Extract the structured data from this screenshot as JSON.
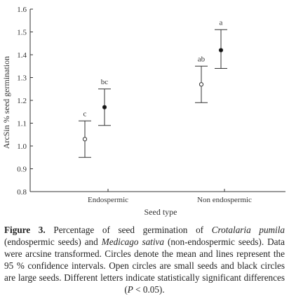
{
  "chart_data": {
    "type": "scatter",
    "xlabel": "Seed type",
    "ylabel": "ArcSin % seed germination",
    "ylim": [
      0.8,
      1.6
    ],
    "yticks": [
      "0.8",
      "0.9",
      "1.0",
      "1.1",
      "1.2",
      "1.3",
      "1.4",
      "1.5",
      "1.6"
    ],
    "categories": [
      "Endospermic",
      "Non endospermic"
    ],
    "grid": false,
    "points": [
      {
        "category": "Endospermic",
        "size": "small",
        "fill": "open",
        "mean": 1.03,
        "lower": 0.95,
        "upper": 1.11,
        "letter": "c"
      },
      {
        "category": "Endospermic",
        "size": "large",
        "fill": "filled",
        "mean": 1.17,
        "lower": 1.09,
        "upper": 1.25,
        "letter": "bc"
      },
      {
        "category": "Non endospermic",
        "size": "small",
        "fill": "open",
        "mean": 1.27,
        "lower": 1.19,
        "upper": 1.35,
        "letter": "ab"
      },
      {
        "category": "Non endospermic",
        "size": "large",
        "fill": "filled",
        "mean": 1.42,
        "lower": 1.34,
        "upper": 1.51,
        "letter": "a"
      }
    ]
  },
  "caption": {
    "label": "Figure 3.",
    "t1": " Percentage of seed germination of ",
    "sp1": "Crotalaria pumila",
    "t2": " (endospermic seeds) and ",
    "sp2": "Medicago sativa",
    "t3": " (non-endospermic seeds). Data were arcsine transformed. Circles denote the mean and lines represent the 95 % confidence intervals. Open circles are small seeds and black circles are large seeds. Different letters indicate statistically significant differences (",
    "p": "P",
    "t4": " < 0.05)."
  }
}
